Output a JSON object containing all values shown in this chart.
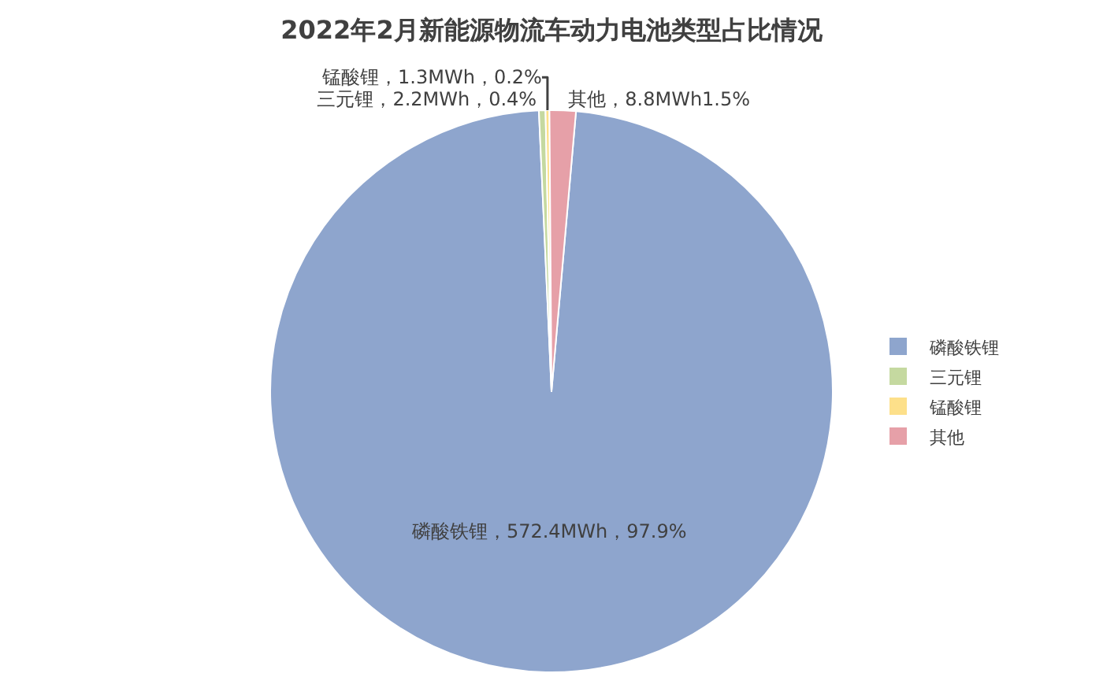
{
  "chart_data": {
    "type": "pie",
    "title": "2022年2月新能源物流车动力电池类型占比情况",
    "categories": [
      "磷酸铁锂",
      "三元锂",
      "锰酸锂",
      "其他"
    ],
    "values": [
      572.4,
      2.2,
      1.3,
      8.8
    ],
    "colors": [
      "#8ea5cd",
      "#c5d9a0",
      "#fde08a",
      "#e6a0a8"
    ],
    "value_labels": [
      "磷酸铁锂，572.4MWh，97.9%",
      "三元锂，2.2MWh，0.4%",
      "锰酸锂，1.3MWh，0.2%",
      "其他，8.8MWh1.5%"
    ],
    "legend": "right"
  }
}
